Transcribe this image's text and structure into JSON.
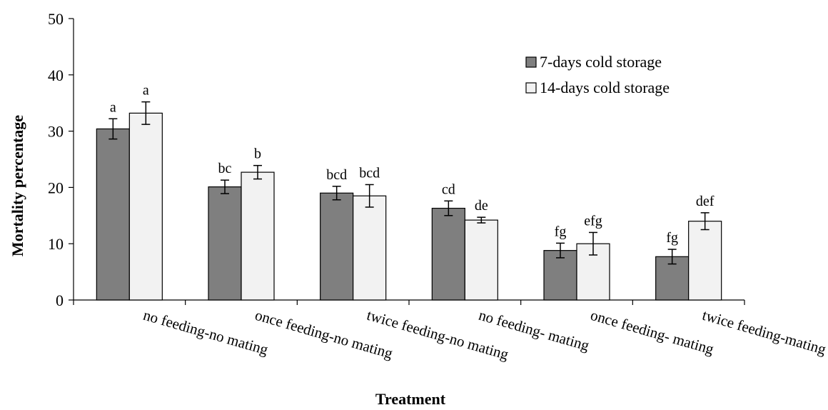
{
  "chart_data": {
    "type": "bar",
    "xlabel": "Treatment",
    "ylabel": "Mortality percentage",
    "ylim": [
      0,
      50
    ],
    "yticks": [
      0,
      10,
      20,
      30,
      40,
      50
    ],
    "grid": false,
    "legend_position": "top-right",
    "categories": [
      "no feeding-no mating",
      "once feeding-no mating",
      "twice feeding-no mating",
      "no feeding- mating",
      "once feeding- mating",
      "twice feeding-mating"
    ],
    "series": [
      {
        "name": "7-days cold storage",
        "color": "#7f7f7f",
        "values": [
          30.4,
          20.1,
          19.0,
          16.3,
          8.8,
          7.7
        ],
        "errors": [
          1.8,
          1.2,
          1.2,
          1.3,
          1.3,
          1.3
        ],
        "labels": [
          "a",
          "bc",
          "bcd",
          "cd",
          "fg",
          "fg"
        ]
      },
      {
        "name": "14-days cold storage",
        "color": "#f2f2f2",
        "values": [
          33.2,
          22.7,
          18.5,
          14.2,
          10.0,
          14.0
        ],
        "errors": [
          2.0,
          1.2,
          2.0,
          0.5,
          2.0,
          1.5
        ],
        "labels": [
          "a",
          "b",
          "bcd",
          "de",
          "efg",
          "def"
        ]
      }
    ]
  }
}
